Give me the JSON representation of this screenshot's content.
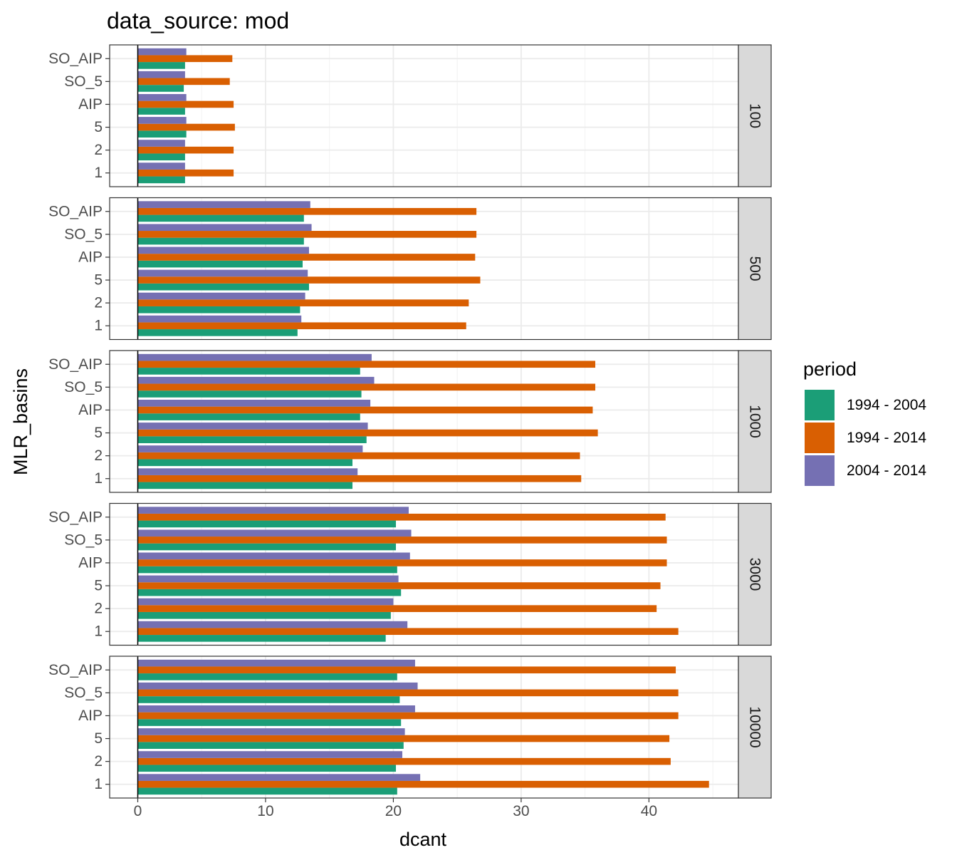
{
  "chart_data": {
    "type": "bar",
    "orientation": "horizontal",
    "title": "data_source: mod",
    "xlabel": "dcant",
    "ylabel": "MLR_basins",
    "xlim": [
      -2.2,
      47
    ],
    "xticks": [
      0,
      10,
      20,
      30,
      40
    ],
    "categories": [
      "SO_AIP",
      "SO_5",
      "AIP",
      "5",
      "2",
      "1"
    ],
    "grid": true,
    "legend": {
      "title": "period",
      "position": "right",
      "entries": [
        "1994 - 2004",
        "1994 - 2014",
        "2004 - 2014"
      ]
    },
    "colors": {
      "1994 - 2004": "#1b9e77",
      "1994 - 2014": "#d95f02",
      "2004 - 2014": "#7570b3"
    },
    "facets": [
      {
        "label": "100",
        "series": [
          {
            "name": "1994 - 2004",
            "values": [
              3.7,
              3.6,
              3.7,
              3.8,
              3.7,
              3.7
            ]
          },
          {
            "name": "1994 - 2014",
            "values": [
              7.4,
              7.2,
              7.5,
              7.6,
              7.5,
              7.5
            ]
          },
          {
            "name": "2004 - 2014",
            "values": [
              3.8,
              3.7,
              3.8,
              3.8,
              3.7,
              3.7
            ]
          }
        ]
      },
      {
        "label": "500",
        "series": [
          {
            "name": "1994 - 2004",
            "values": [
              13.0,
              13.0,
              12.9,
              13.4,
              12.7,
              12.5
            ]
          },
          {
            "name": "1994 - 2014",
            "values": [
              26.5,
              26.5,
              26.4,
              26.8,
              25.9,
              25.7
            ]
          },
          {
            "name": "2004 - 2014",
            "values": [
              13.5,
              13.6,
              13.4,
              13.3,
              13.1,
              12.8
            ]
          }
        ]
      },
      {
        "label": "1000",
        "series": [
          {
            "name": "1994 - 2004",
            "values": [
              17.4,
              17.5,
              17.4,
              17.9,
              16.8,
              16.8
            ]
          },
          {
            "name": "1994 - 2014",
            "values": [
              35.8,
              35.8,
              35.6,
              36.0,
              34.6,
              34.7
            ]
          },
          {
            "name": "2004 - 2014",
            "values": [
              18.3,
              18.5,
              18.2,
              18.0,
              17.6,
              17.2
            ]
          }
        ]
      },
      {
        "label": "3000",
        "series": [
          {
            "name": "1994 - 2004",
            "values": [
              20.2,
              20.2,
              20.3,
              20.6,
              19.8,
              19.4
            ]
          },
          {
            "name": "1994 - 2014",
            "values": [
              41.3,
              41.4,
              41.4,
              40.9,
              40.6,
              42.3
            ]
          },
          {
            "name": "2004 - 2014",
            "values": [
              21.2,
              21.4,
              21.3,
              20.4,
              20.0,
              21.1
            ]
          }
        ]
      },
      {
        "label": "10000",
        "series": [
          {
            "name": "1994 - 2004",
            "values": [
              20.3,
              20.5,
              20.6,
              20.8,
              20.2,
              20.3
            ]
          },
          {
            "name": "1994 - 2014",
            "values": [
              42.1,
              42.3,
              42.3,
              41.6,
              41.7,
              44.7
            ]
          },
          {
            "name": "2004 - 2014",
            "values": [
              21.7,
              21.9,
              21.7,
              20.9,
              20.7,
              22.1
            ]
          }
        ]
      }
    ]
  }
}
